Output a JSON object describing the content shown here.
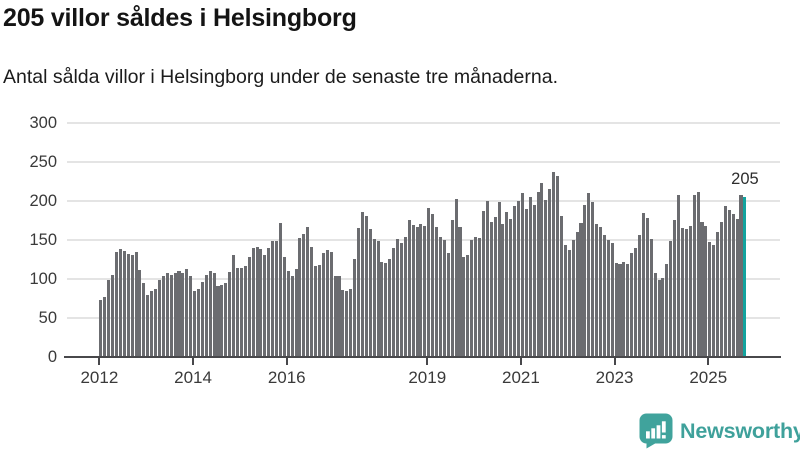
{
  "header": {
    "title": "205 villor såldes i Helsingborg",
    "subtitle": "Antal sålda villor i Helsingborg under de senaste tre månaderna."
  },
  "chart_data": {
    "type": "bar",
    "title": "205 villor såldes i Helsingborg",
    "subtitle": "Antal sålda villor i Helsingborg under de senaste tre månaderna.",
    "x_start": "2012-01",
    "x_end": "2025-10",
    "ylim": [
      0,
      300
    ],
    "y_ticks": [
      0,
      50,
      100,
      150,
      200,
      250,
      300
    ],
    "x_tick_years": [
      2012,
      2014,
      2016,
      2019,
      2021,
      2023,
      2025
    ],
    "x_tick_labels": [
      "2012",
      "2014",
      "2016",
      "2019",
      "2021",
      "2023",
      "2025"
    ],
    "grid": "horizontal",
    "legend": "none",
    "bar_color": "#6b6c70",
    "highlight_color": "#12a39e",
    "highlight_index_from_end": 1,
    "highlight_value_label": "205",
    "values": [
      73,
      76,
      98,
      105,
      135,
      138,
      136,
      132,
      131,
      135,
      111,
      94,
      79,
      84,
      87,
      99,
      104,
      107,
      105,
      108,
      110,
      107,
      113,
      104,
      84,
      87,
      96,
      105,
      110,
      108,
      91,
      92,
      94,
      109,
      130,
      114,
      114,
      117,
      128,
      140,
      141,
      138,
      131,
      140,
      148,
      148,
      172,
      128,
      110,
      104,
      113,
      152,
      158,
      166,
      141,
      116,
      118,
      133,
      137,
      134,
      103,
      103,
      85,
      84,
      87,
      126,
      165,
      186,
      181,
      164,
      151,
      148,
      122,
      120,
      126,
      140,
      151,
      146,
      154,
      176,
      169,
      166,
      171,
      168,
      191,
      183,
      167,
      154,
      150,
      133,
      175,
      203,
      166,
      128,
      130,
      150,
      154,
      152,
      187,
      200,
      173,
      180,
      199,
      171,
      186,
      177,
      194,
      200,
      210,
      190,
      205,
      195,
      211,
      223,
      201,
      216,
      237,
      232,
      181,
      143,
      137,
      150,
      160,
      172,
      195,
      210,
      199,
      171,
      166,
      156,
      150,
      146,
      120,
      119,
      121,
      119,
      133,
      139,
      156,
      184,
      178,
      151,
      108,
      98,
      101,
      119,
      148,
      175,
      208,
      165,
      164,
      168,
      208,
      212,
      173,
      168,
      147,
      144,
      160,
      173,
      194,
      188,
      183,
      177,
      208,
      205
    ]
  },
  "footer": {
    "brand": "Newsworthy",
    "brand_color": "#3fa19b"
  }
}
